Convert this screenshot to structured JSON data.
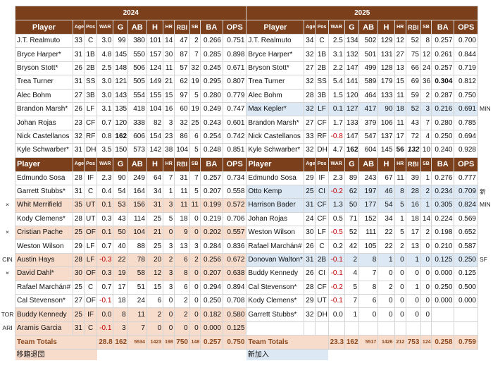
{
  "years": [
    "2024",
    "2025"
  ],
  "columns": {
    "player": "Player",
    "age": "Age",
    "pos": "Pos",
    "war": "WAR",
    "g": "G",
    "ab": "AB",
    "h": "H",
    "hr": "HR",
    "rbi": "RBI",
    "sb": "SB",
    "ba": "BA",
    "ops": "OPS"
  },
  "starters_2024": [
    [
      "J.T. Realmuto",
      "33",
      "C",
      "3.0",
      "99",
      "380",
      "101",
      "14",
      "47",
      "2",
      "0.266",
      "0.751"
    ],
    [
      "Bryce Harper*",
      "31",
      "1B",
      "4.8",
      "145",
      "550",
      "157",
      "30",
      "87",
      "7",
      "0.285",
      "0.898"
    ],
    [
      "Bryson Stott*",
      "26",
      "2B",
      "2.5",
      "148",
      "506",
      "124",
      "11",
      "57",
      "32",
      "0.245",
      "0.671"
    ],
    [
      "Trea Turner",
      "31",
      "SS",
      "3.0",
      "121",
      "505",
      "149",
      "21",
      "62",
      "19",
      "0.295",
      "0.807"
    ],
    [
      "Alec Bohm",
      "27",
      "3B",
      "3.0",
      "143",
      "554",
      "155",
      "15",
      "97",
      "5",
      "0.280",
      "0.779"
    ],
    [
      "Brandon Marsh*",
      "26",
      "LF",
      "3.1",
      "135",
      "418",
      "104",
      "16",
      "60",
      "19",
      "0.249",
      "0.747"
    ],
    [
      "Johan Rojas",
      "23",
      "CF",
      "0.7",
      "120",
      "338",
      "82",
      "3",
      "32",
      "25",
      "0.243",
      "0.601"
    ],
    [
      "Nick Castellanos",
      "32",
      "RF",
      "0.8",
      "162",
      "606",
      "154",
      "23",
      "86",
      "6",
      "0.254",
      "0.742"
    ],
    [
      "Kyle Schwarber*",
      "31",
      "DH",
      "3.5",
      "150",
      "573",
      "142",
      "38",
      "104",
      "5",
      "0.248",
      "0.851"
    ]
  ],
  "starters_2025": [
    [
      "J.T. Realmuto",
      "34",
      "C",
      "2.5",
      "134",
      "502",
      "129",
      "12",
      "52",
      "8",
      "0.257",
      "0.700"
    ],
    [
      "Bryce Harper*",
      "32",
      "1B",
      "3.1",
      "132",
      "501",
      "131",
      "27",
      "75",
      "12",
      "0.261",
      "0.844"
    ],
    [
      "Bryson Stott*",
      "27",
      "2B",
      "2.2",
      "147",
      "499",
      "128",
      "13",
      "66",
      "24",
      "0.257",
      "0.719"
    ],
    [
      "Trea Turner",
      "32",
      "SS",
      "5.4",
      "141",
      "589",
      "179",
      "15",
      "69",
      "36",
      "0.304",
      "0.812"
    ],
    [
      "Alec Bohm",
      "28",
      "3B",
      "1.5",
      "120",
      "464",
      "133",
      "11",
      "59",
      "2",
      "0.287",
      "0.750"
    ],
    [
      "Max Kepler*",
      "32",
      "LF",
      "0.1",
      "127",
      "417",
      "90",
      "18",
      "52",
      "3",
      "0.216",
      "0.691"
    ],
    [
      "Brandon Marsh*",
      "27",
      "CF",
      "1.7",
      "133",
      "379",
      "106",
      "11",
      "43",
      "7",
      "0.280",
      "0.785"
    ],
    [
      "Nick Castellanos",
      "33",
      "RF",
      "-0.8",
      "147",
      "547",
      "137",
      "17",
      "72",
      "4",
      "0.250",
      "0.694"
    ],
    [
      "Kyle Schwarber*",
      "32",
      "DH",
      "4.7",
      "162",
      "604",
      "145",
      "56",
      "132",
      "10",
      "0.240",
      "0.928"
    ]
  ],
  "bench_2024": [
    [
      "Edmundo Sosa",
      "28",
      "IF",
      "2.3",
      "90",
      "249",
      "64",
      "7",
      "31",
      "7",
      "0.257",
      "0.734"
    ],
    [
      "Garrett Stubbs*",
      "31",
      "C",
      "0.4",
      "54",
      "164",
      "34",
      "1",
      "11",
      "5",
      "0.207",
      "0.558"
    ],
    [
      "Whit Merrifield",
      "35",
      "UT",
      "0.1",
      "53",
      "156",
      "31",
      "3",
      "11",
      "11",
      "0.199",
      "0.572"
    ],
    [
      "Kody Clemens*",
      "28",
      "UT",
      "0.3",
      "43",
      "114",
      "25",
      "5",
      "18",
      "0",
      "0.219",
      "0.706"
    ],
    [
      "Cristian Pache",
      "25",
      "OF",
      "0.1",
      "50",
      "104",
      "21",
      "0",
      "9",
      "0",
      "0.202",
      "0.557"
    ],
    [
      "Weston Wilson",
      "29",
      "LF",
      "0.7",
      "40",
      "88",
      "25",
      "3",
      "13",
      "3",
      "0.284",
      "0.836"
    ],
    [
      "Austin Hays",
      "28",
      "LF",
      "-0.3",
      "22",
      "78",
      "20",
      "2",
      "6",
      "2",
      "0.256",
      "0.672"
    ],
    [
      "David Dahl*",
      "30",
      "OF",
      "0.3",
      "19",
      "58",
      "12",
      "3",
      "8",
      "0",
      "0.207",
      "0.638"
    ],
    [
      "Rafael Marchán#",
      "25",
      "C",
      "0.7",
      "17",
      "51",
      "15",
      "3",
      "6",
      "0",
      "0.294",
      "0.894"
    ],
    [
      "Cal Stevenson*",
      "27",
      "OF",
      "-0.1",
      "18",
      "24",
      "6",
      "0",
      "2",
      "0",
      "0.250",
      "0.708"
    ],
    [
      "Buddy Kennedy",
      "25",
      "IF",
      "0.0",
      "8",
      "11",
      "2",
      "0",
      "2",
      "0",
      "0.182",
      "0.580"
    ],
    [
      "Aramis Garcia",
      "31",
      "C",
      "-0.1",
      "3",
      "7",
      "0",
      "0",
      "0",
      "0",
      "0.000",
      "0.125"
    ]
  ],
  "bench_2025": [
    [
      "Edmundo Sosa",
      "29",
      "IF",
      "2.3",
      "89",
      "243",
      "67",
      "11",
      "39",
      "1",
      "0.276",
      "0.777"
    ],
    [
      "Otto Kemp",
      "25",
      "CI",
      "-0.2",
      "62",
      "197",
      "46",
      "8",
      "28",
      "2",
      "0.234",
      "0.709"
    ],
    [
      "Harrison Bader",
      "31",
      "CF",
      "1.3",
      "50",
      "177",
      "54",
      "5",
      "16",
      "1",
      "0.305",
      "0.824"
    ],
    [
      "Johan Rojas",
      "24",
      "CF",
      "0.5",
      "71",
      "152",
      "34",
      "1",
      "18",
      "14",
      "0.224",
      "0.569"
    ],
    [
      "Weston Wilson",
      "30",
      "LF",
      "-0.5",
      "52",
      "111",
      "22",
      "5",
      "17",
      "2",
      "0.198",
      "0.652"
    ],
    [
      "Rafael Marchán#",
      "26",
      "C",
      "0.2",
      "42",
      "105",
      "22",
      "2",
      "13",
      "0",
      "0.210",
      "0.587"
    ],
    [
      "Donovan Walton*",
      "31",
      "2B",
      "-0.1",
      "2",
      "8",
      "1",
      "0",
      "1",
      "0",
      "0.125",
      "0.250"
    ],
    [
      "Buddy Kennedy",
      "26",
      "CI",
      "-0.1",
      "4",
      "7",
      "0",
      "0",
      "0",
      "0",
      "0.000",
      "0.125"
    ],
    [
      "Cal Stevenson*",
      "28",
      "CF",
      "-0.2",
      "5",
      "8",
      "2",
      "0",
      "1",
      "0",
      "0.250",
      "0.500"
    ],
    [
      "Kody Clemens*",
      "29",
      "UT",
      "-0.1",
      "7",
      "6",
      "0",
      "0",
      "0",
      "0",
      "0.000",
      "0.000"
    ],
    [
      "Garrett Stubbs*",
      "32",
      "DH",
      "0.0",
      "1",
      "0",
      "0",
      "0",
      "0",
      "0",
      "",
      ""
    ],
    [
      "",
      "",
      "",
      "",
      "",
      "",
      "",
      "",
      "",
      "",
      "",
      ""
    ]
  ],
  "totals": {
    "label": "Team Totals",
    "y2024": [
      "28.8",
      "162",
      "5534",
      "1423",
      "198",
      "750",
      "148",
      "0.257",
      "0.750"
    ],
    "y2025": [
      "23.3",
      "162",
      "5517",
      "1426",
      "212",
      "753",
      "124",
      "0.258",
      "0.759"
    ]
  },
  "legend": {
    "departed": "移籍退団",
    "new": "新加入"
  },
  "left_annotations": [
    {
      "row": 2,
      "text": "×"
    },
    {
      "row": 4,
      "text": "×"
    },
    {
      "row": 6,
      "text": "CIN"
    },
    {
      "row": 7,
      "text": "×"
    },
    {
      "row": 10,
      "text": "TOR"
    },
    {
      "row": 11,
      "text": "ARI"
    }
  ],
  "right_annotations_starters": [
    {
      "row": 5,
      "text": "MIN"
    }
  ],
  "right_annotations_bench": [
    {
      "row": 1,
      "text": "新"
    },
    {
      "row": 2,
      "text": "MIN"
    },
    {
      "row": 6,
      "text": "SF"
    }
  ],
  "departed_bench_rows_2024": [
    2,
    4,
    6,
    7,
    10,
    11
  ],
  "new_starter_rows_2025": [
    5
  ],
  "new_bench_rows_2025": [
    1,
    2,
    6
  ],
  "bold_cells": {
    "s24": [
      [
        7,
        4
      ]
    ],
    "s25": [
      [
        3,
        10
      ],
      [
        8,
        4
      ],
      [
        8,
        7
      ]
    ],
    "s25_italic": [
      [
        8,
        8
      ]
    ]
  },
  "colors": {
    "header_bg": "#7b3f1c",
    "departed": "#f7dccc",
    "new": "#dce8f4",
    "negative": "#c00000",
    "totals_text": "#8b4a1f"
  }
}
